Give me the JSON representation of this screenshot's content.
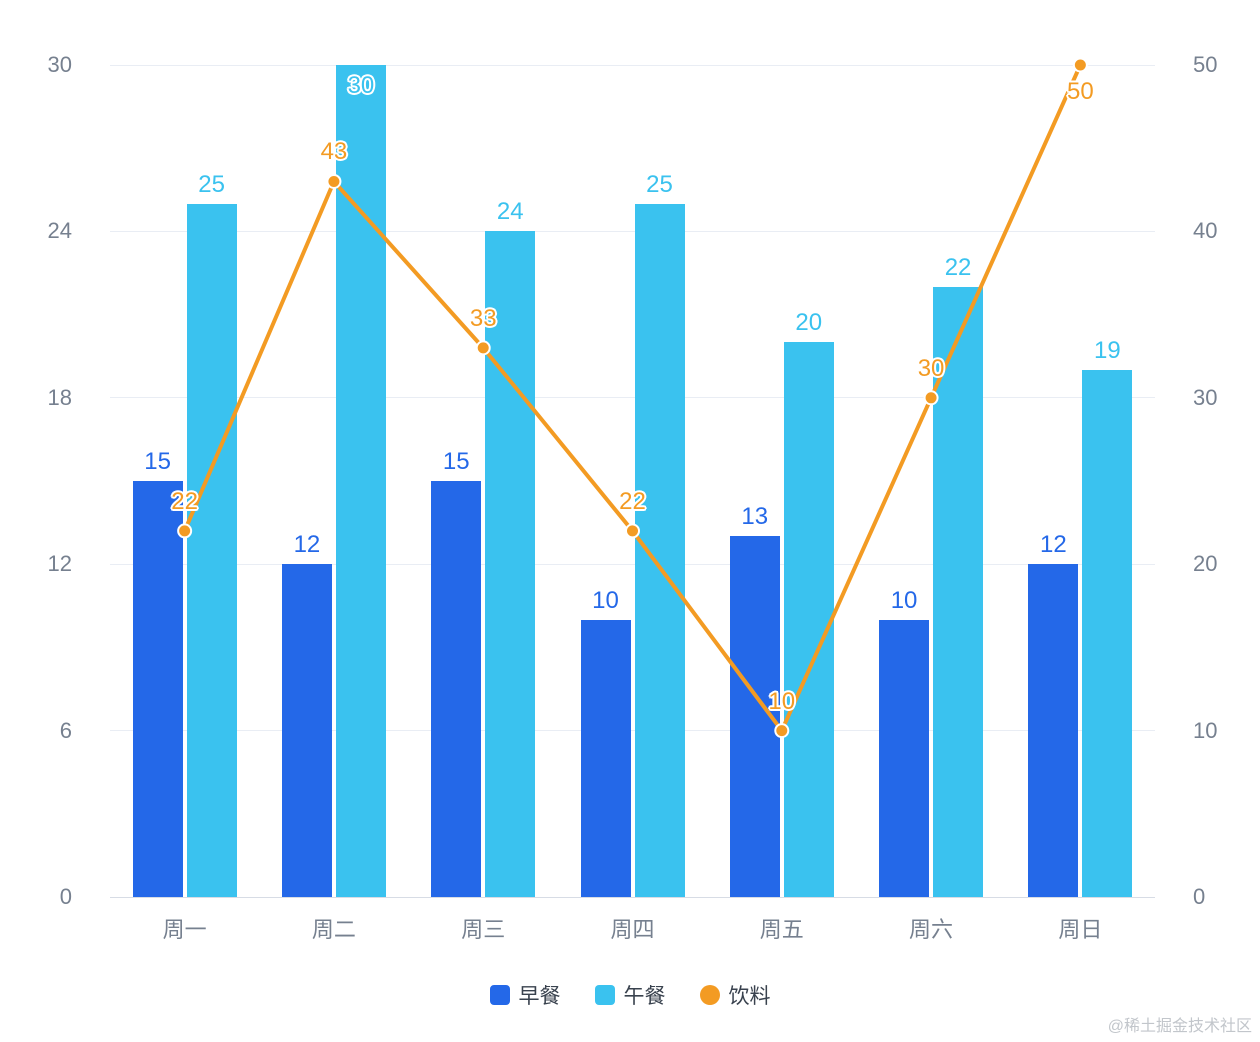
{
  "chart_data": {
    "type": "combo-bar-line",
    "title": "",
    "categories": [
      "周一",
      "周二",
      "周三",
      "周四",
      "周五",
      "周六",
      "周日"
    ],
    "series": [
      {
        "id": "breakfast",
        "name": "早餐",
        "type": "bar",
        "y_axis": "left",
        "color": "#2468E8",
        "values": [
          15,
          12,
          15,
          10,
          13,
          10,
          12
        ]
      },
      {
        "id": "lunch",
        "name": "午餐",
        "type": "bar",
        "y_axis": "left",
        "color": "#3AC2EF",
        "values": [
          25,
          30,
          24,
          25,
          20,
          22,
          19
        ]
      },
      {
        "id": "drinks",
        "name": "饮料",
        "type": "line",
        "y_axis": "right",
        "color": "#F39B23",
        "values": [
          22,
          43,
          33,
          22,
          10,
          30,
          50
        ]
      }
    ],
    "left_axis": {
      "min": 0,
      "max": 30,
      "ticks": [
        0,
        6,
        12,
        18,
        24,
        30
      ]
    },
    "right_axis": {
      "min": 0,
      "max": 50,
      "ticks": [
        0,
        10,
        20,
        30,
        40,
        50
      ]
    },
    "grid": true,
    "legend": {
      "position": "bottom",
      "items": [
        "早餐",
        "午餐",
        "饮料"
      ]
    }
  },
  "colors": {
    "breakfast_bar": "#2468E8",
    "lunch_bar": "#3AC2EF",
    "drinks_line": "#F39B23",
    "axis_text": "#76808F",
    "gridline": "#E9EDF4",
    "legend_text": "#39424E",
    "watermark_text": "#C2C6CB"
  },
  "watermark": "@稀土掘金技术社区"
}
